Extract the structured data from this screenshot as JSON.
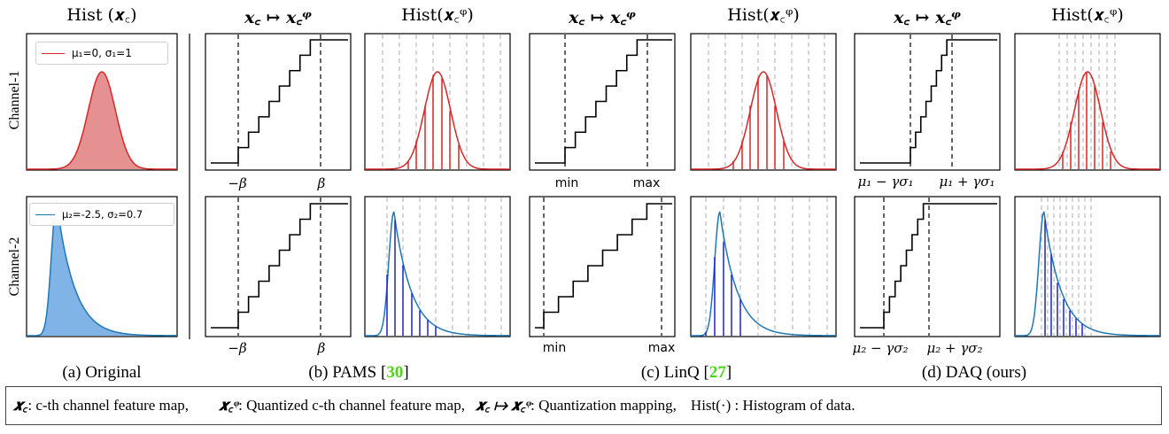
{
  "headers": {
    "col1": "Hist (𝒙꜀)",
    "col_mapping": "𝒙꜀ ↦ 𝒙꜀ᵠ",
    "col_hist": "Hist(𝒙꜀ᵠ)"
  },
  "row_labels": [
    "Channel-1",
    "Channel-2"
  ],
  "legends": {
    "channel1": "μ₁=0, σ₁=1",
    "channel2": "μ₂=-2.5, σ₂=0.7"
  },
  "tick_labels": {
    "pams": [
      "−β",
      "β"
    ],
    "linq": [
      "min",
      "max"
    ],
    "daq_row1": [
      "μ₁ − γσ₁",
      "μ₁ + γσ₁"
    ],
    "daq_row2": [
      "μ₂ − γσ₂",
      "μ₂ + γσ₂"
    ]
  },
  "captions": {
    "a": "(a) Original",
    "b": "(b) PAMS [",
    "b_ref": "30",
    "c": "(c) LinQ [",
    "c_ref": "27",
    "d": "(d) DAQ (ours)",
    "close": "]"
  },
  "footer": {
    "sym1": "𝒙꜀",
    "text1": " : c-th channel feature map,",
    "sym2": "𝒙꜀ᵠ",
    "text2": " : Quantized c-th channel feature map,",
    "sym3": "𝒙꜀ ↦ 𝒙꜀ᵠ",
    "text3": " : Quantization mapping,",
    "text4": "Hist(·) : Histogram of data."
  },
  "colors": {
    "channel1": "#d62728",
    "channel1_fill": "#e59191",
    "channel2": "#1f77b4",
    "channel2_fill": "#80b3e6",
    "quant_bar_blue": "#1f22c8",
    "grid": "#bbbbbb"
  }
}
